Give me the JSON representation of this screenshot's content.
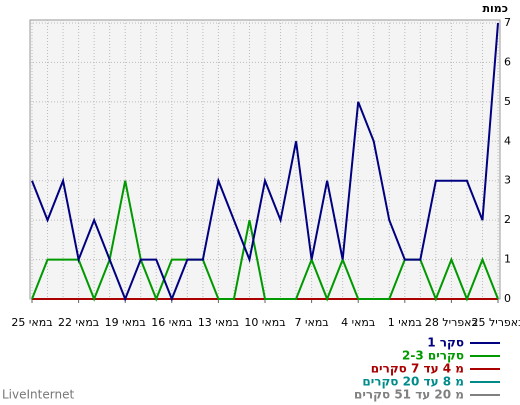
{
  "chart_data": {
    "type": "line",
    "y_label": "כמות",
    "categories": [
      "25 במאי",
      null,
      null,
      "22 במאי",
      null,
      null,
      "19 במאי",
      null,
      null,
      "16 במאי",
      null,
      null,
      "13 במאי",
      null,
      null,
      "10 במאי",
      null,
      null,
      "7 במאי",
      null,
      null,
      "4 במאי",
      null,
      null,
      "1 במאי",
      null,
      null,
      "28 באפריל",
      null,
      null,
      "25 באפריל"
    ],
    "series": [
      {
        "name": "סקר 1",
        "color": "#000080",
        "values": [
          3,
          2,
          3,
          1,
          2,
          1,
          0,
          1,
          1,
          0,
          1,
          1,
          3,
          2,
          1,
          3,
          2,
          4,
          1,
          3,
          1,
          5,
          4,
          2,
          1,
          1,
          3,
          3,
          3,
          2,
          7
        ]
      },
      {
        "name": "2-3 סקרים",
        "color": "#009900",
        "values": [
          0,
          1,
          1,
          1,
          0,
          1,
          3,
          1,
          0,
          1,
          1,
          1,
          0,
          0,
          2,
          0,
          0,
          0,
          1,
          0,
          1,
          0,
          0,
          0,
          1,
          1,
          0,
          1,
          0,
          1,
          0
        ]
      },
      {
        "name": "מ 4 עד 7 סקרים",
        "color": "#aa0000",
        "values": [
          0,
          0,
          0,
          0,
          0,
          0,
          0,
          0,
          0,
          0,
          0,
          0,
          0,
          0,
          0,
          0,
          0,
          0,
          0,
          0,
          0,
          0,
          0,
          0,
          0,
          0,
          0,
          0,
          0,
          0,
          0
        ]
      },
      {
        "name": "מ 8 עד 20 סקרים",
        "color": "#008b8b",
        "values": [
          0,
          0,
          0,
          0,
          0,
          0,
          0,
          0,
          0,
          0,
          0,
          0,
          0,
          0,
          0,
          0,
          0,
          0,
          0,
          0,
          0,
          0,
          0,
          0,
          0,
          0,
          0,
          0,
          0,
          0,
          0
        ]
      },
      {
        "name": "מ 20 עד 51 סקרים",
        "color": "#808080",
        "values": [
          0,
          0,
          0,
          0,
          0,
          0,
          0,
          0,
          0,
          0,
          0,
          0,
          0,
          0,
          0,
          0,
          0,
          0,
          0,
          0,
          0,
          0,
          0,
          0,
          0,
          0,
          0,
          0,
          0,
          0,
          0
        ]
      }
    ],
    "ylim": [
      0,
      7
    ],
    "yticks": [
      0,
      1,
      2,
      3,
      4,
      5,
      6,
      7
    ],
    "grid": true,
    "footer": "LiveInternet"
  }
}
